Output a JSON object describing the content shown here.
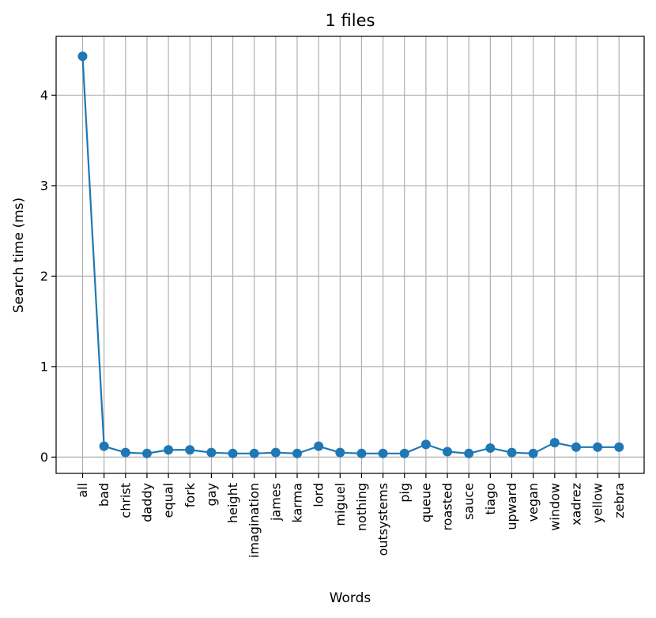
{
  "chart_data": {
    "type": "line",
    "title": "1 files",
    "xlabel": "Words",
    "ylabel": "Search time (ms)",
    "categories": [
      "all",
      "bad",
      "christ",
      "daddy",
      "equal",
      "fork",
      "gay",
      "height",
      "imagination",
      "james",
      "karma",
      "lord",
      "miguel",
      "nothing",
      "outsystems",
      "pig",
      "queue",
      "roasted",
      "sauce",
      "tiago",
      "upward",
      "vegan",
      "window",
      "xadrez",
      "yellow",
      "zebra"
    ],
    "series": [
      {
        "values": [
          4.43,
          0.12,
          0.05,
          0.04,
          0.08,
          0.08,
          0.05,
          0.04,
          0.04,
          0.05,
          0.04,
          0.12,
          0.05,
          0.04,
          0.04,
          0.04,
          0.14,
          0.06,
          0.04,
          0.1,
          0.05,
          0.04,
          0.16,
          0.11,
          0.11,
          0.11
        ],
        "color": "#1f77b4",
        "marker": "circle"
      }
    ],
    "yticks": [
      0,
      1,
      2,
      3,
      4
    ],
    "ylim": [
      -0.18,
      4.65
    ],
    "grid": true,
    "legend": "none"
  }
}
